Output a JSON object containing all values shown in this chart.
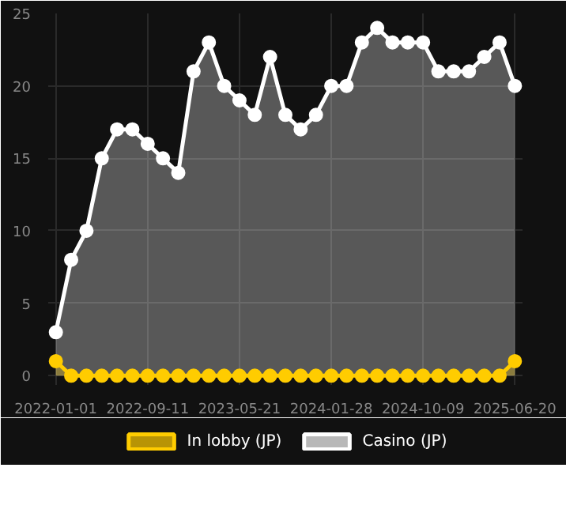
{
  "chart_data": {
    "type": "area",
    "categories": [
      "2022-01-01",
      null,
      null,
      null,
      null,
      null,
      "2022-09-11",
      null,
      null,
      null,
      null,
      null,
      "2023-05-21",
      null,
      null,
      null,
      null,
      null,
      "2024-01-28",
      null,
      null,
      null,
      null,
      null,
      "2024-10-09",
      null,
      null,
      null,
      null,
      null,
      "2025-06-20"
    ],
    "series": [
      {
        "name": "In lobby (JP)",
        "color": "#ffcc00",
        "values": [
          1,
          0,
          0,
          0,
          0,
          0,
          0,
          0,
          0,
          0,
          0,
          0,
          0,
          0,
          0,
          0,
          0,
          0,
          0,
          0,
          0,
          0,
          0,
          0,
          0,
          0,
          0,
          0,
          0,
          0,
          1
        ]
      },
      {
        "name": "Casino (JP)",
        "color": "#ffffff",
        "values": [
          3,
          8,
          10,
          15,
          17,
          17,
          16,
          15,
          14,
          21,
          23,
          20,
          19,
          18,
          22,
          18,
          17,
          18,
          20,
          20,
          23,
          24,
          23,
          23,
          23,
          21,
          21,
          21,
          22,
          23,
          20
        ]
      }
    ],
    "ylim": [
      0,
      25
    ],
    "yticks": [
      0,
      5,
      10,
      15,
      20,
      25
    ],
    "grid": true,
    "legend": "bottom",
    "marker": "circle",
    "line_style": "solid"
  }
}
